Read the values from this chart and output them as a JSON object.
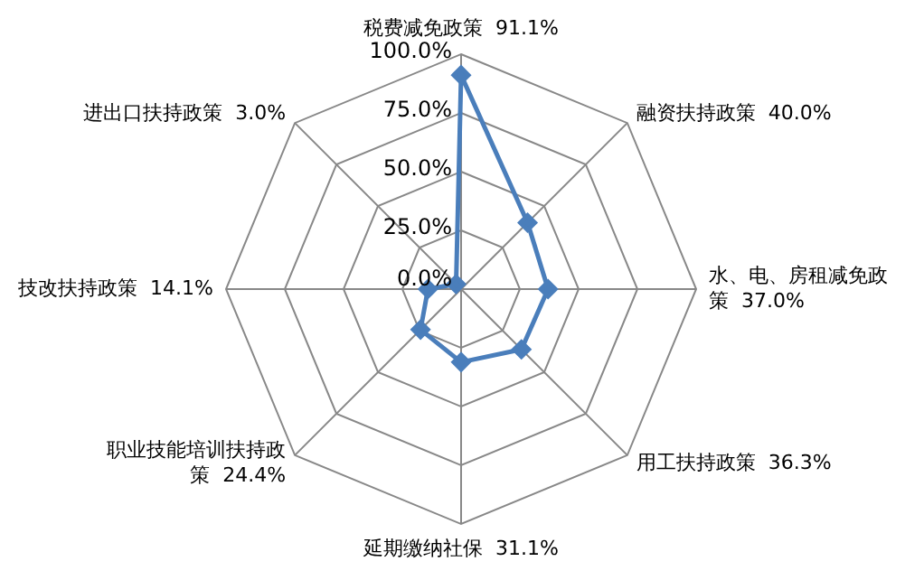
{
  "chart_data": {
    "type": "radar",
    "categories": [
      "税费减免政策  91.1%",
      "融资扶持政策  40.0%",
      "水、电、房租减免政策  37.0%",
      "用工扶持政策  36.3%",
      "延期缴纳社保  31.1%",
      "职业技能培训扶持政策  24.4%",
      "技改扶持政策  14.1%",
      "进出口扶持政策  3.0%"
    ],
    "series": [
      {
        "color": "#4a7ebb",
        "values": [
          91.1,
          40.0,
          37.0,
          36.3,
          31.1,
          24.4,
          14.1,
          3.0
        ]
      }
    ],
    "ylim": [
      0,
      100
    ],
    "yticks": [
      {
        "value": 0,
        "label": "0.0%"
      },
      {
        "value": 25,
        "label": "25.0%"
      },
      {
        "value": 50,
        "label": "50.0%"
      },
      {
        "value": 75,
        "label": "75.0%"
      },
      {
        "value": 100,
        "label": "100.0%"
      }
    ],
    "grid": true,
    "legend": false,
    "marker": "diamond",
    "line_style": "solid"
  }
}
